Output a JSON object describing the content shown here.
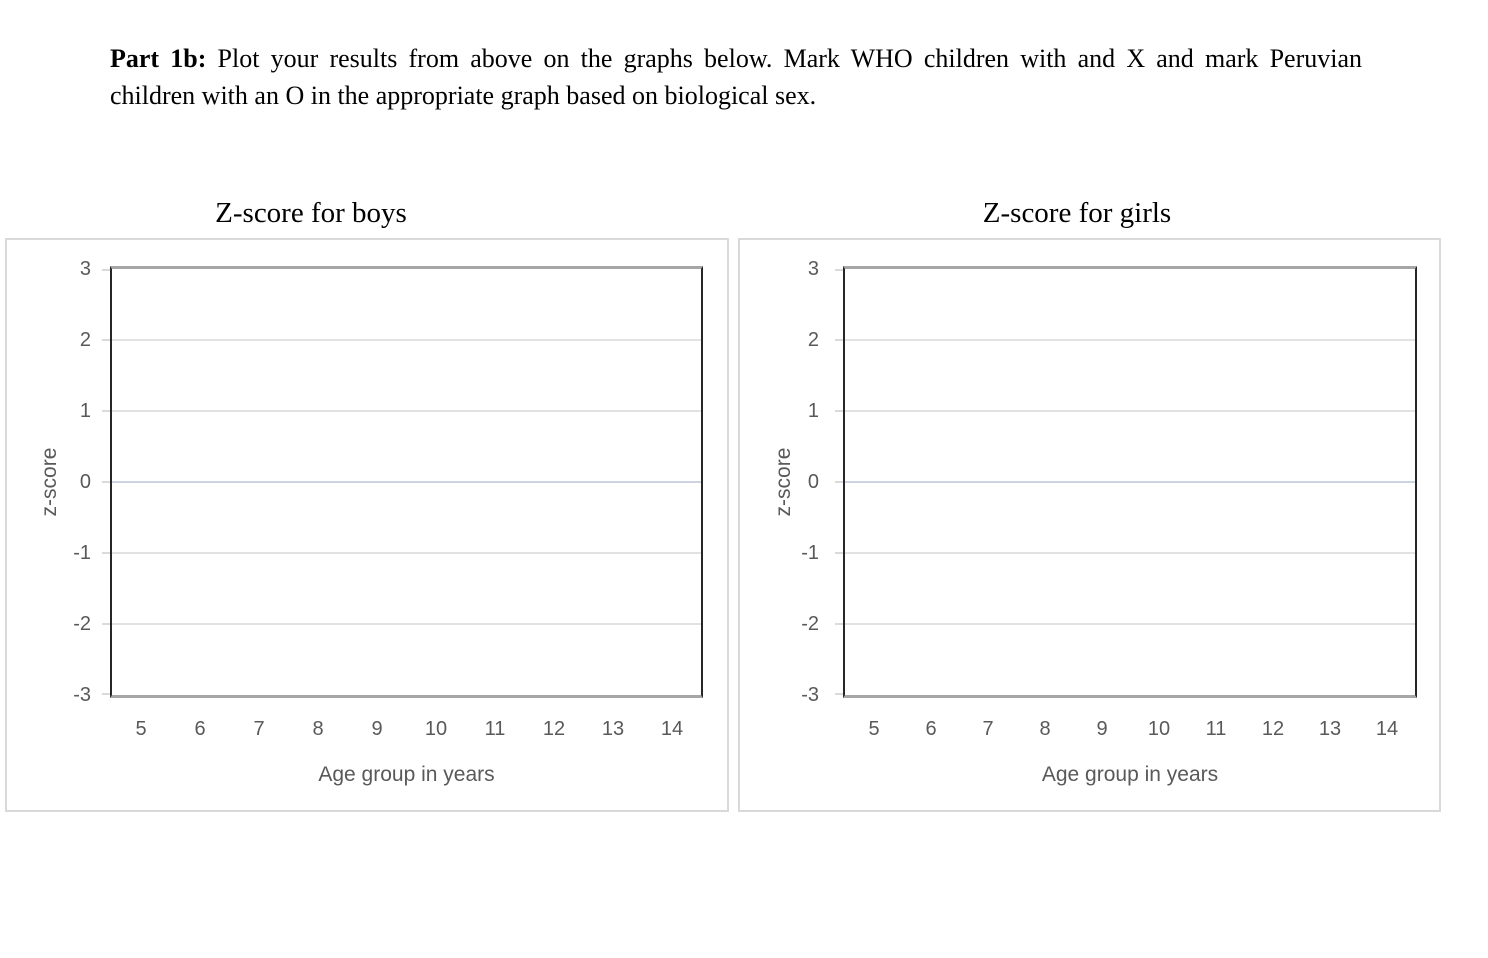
{
  "instructions": {
    "label": "Part 1b:",
    "text": " Plot your results from above on the graphs below. Mark WHO children with and X and mark Peruvian children with an O in the appropriate graph based on biological sex."
  },
  "charts": [
    {
      "title": "Z-score for boys",
      "y_axis_title": "z-score",
      "x_axis_title": "Age group in years",
      "y_ticks": [
        "3",
        "2",
        "1",
        "0",
        "-1",
        "-2",
        "-3"
      ],
      "x_ticks": [
        "5",
        "6",
        "7",
        "8",
        "9",
        "10",
        "11",
        "12",
        "13",
        "14"
      ]
    },
    {
      "title": "Z-score for girls",
      "y_axis_title": "z-score",
      "x_axis_title": "Age group in years",
      "y_ticks": [
        "3",
        "2",
        "1",
        "0",
        "-1",
        "-2",
        "-3"
      ],
      "x_ticks": [
        "5",
        "6",
        "7",
        "8",
        "9",
        "10",
        "11",
        "12",
        "13",
        "14"
      ]
    }
  ],
  "chart_data": [
    {
      "type": "scatter",
      "title": "Z-score for boys",
      "xlabel": "Age group in years",
      "ylabel": "z-score",
      "x_categories": [
        5,
        6,
        7,
        8,
        9,
        10,
        11,
        12,
        13,
        14
      ],
      "ylim": [
        -3,
        3
      ],
      "y_ticks": [
        3,
        2,
        1,
        0,
        -1,
        -2,
        -3
      ],
      "series": [],
      "grid": true,
      "legend": false
    },
    {
      "type": "scatter",
      "title": "Z-score for girls",
      "xlabel": "Age group in years",
      "ylabel": "z-score",
      "x_categories": [
        5,
        6,
        7,
        8,
        9,
        10,
        11,
        12,
        13,
        14
      ],
      "ylim": [
        -3,
        3
      ],
      "y_ticks": [
        3,
        2,
        1,
        0,
        -1,
        -2,
        -3
      ],
      "series": [],
      "grid": true,
      "legend": false
    }
  ],
  "colors": {
    "gridline": "#e2e2e2",
    "zero_line": "#ccd3e2",
    "tick_mark": "#dadada",
    "axis_dark": "#262626",
    "axis_gray": "#a6a6a6",
    "frame_border": "#d9d9d9",
    "axis_text": "#595959",
    "title_text": "#000000"
  }
}
